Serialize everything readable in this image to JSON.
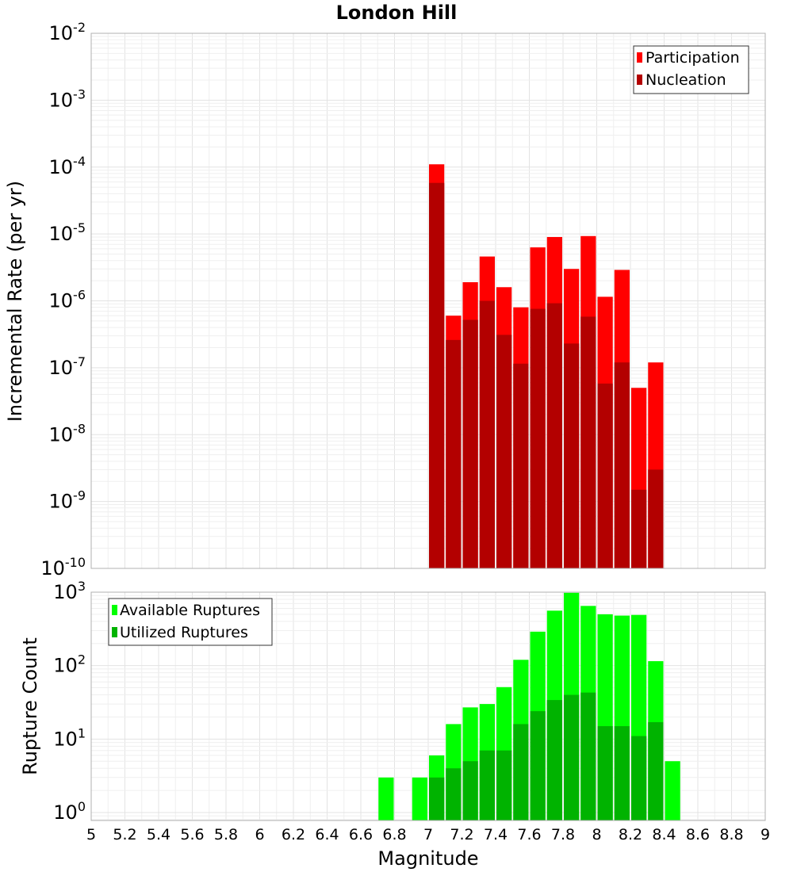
{
  "chart_data": [
    {
      "type": "bar",
      "title": "London Hill",
      "xlabel": "",
      "ylabel": "Incremental Rate (per yr)",
      "yscale": "log",
      "ylim": [
        1e-10,
        0.01
      ],
      "xlim": [
        5,
        9
      ],
      "ytick_labels": [
        {
          "base": "10",
          "exp": "-10"
        },
        {
          "base": "10",
          "exp": "-9"
        },
        {
          "base": "10",
          "exp": "-8"
        },
        {
          "base": "10",
          "exp": "-7"
        },
        {
          "base": "10",
          "exp": "-6"
        },
        {
          "base": "10",
          "exp": "-5"
        },
        {
          "base": "10",
          "exp": "-4"
        },
        {
          "base": "10",
          "exp": "-3"
        },
        {
          "base": "10",
          "exp": "-2"
        }
      ],
      "legend_position": "top-right",
      "bin_width": 0.1,
      "x": [
        7.05,
        7.15,
        7.25,
        7.35,
        7.45,
        7.55,
        7.65,
        7.75,
        7.85,
        7.95,
        8.05,
        8.15,
        8.25,
        8.35
      ],
      "series": [
        {
          "name": "Participation",
          "color": "#ff0000",
          "values": [
            0.00011,
            6e-07,
            1.9e-06,
            4.6e-06,
            1.6e-06,
            8e-07,
            6.3e-06,
            9e-06,
            3e-06,
            9.3e-06,
            1.15e-06,
            2.9e-06,
            5e-08,
            1.2e-07
          ]
        },
        {
          "name": "Nucleation",
          "color": "#b30000",
          "values": [
            5.8e-05,
            2.6e-07,
            5.2e-07,
            1e-06,
            3.1e-07,
            1.15e-07,
            7.6e-07,
            9.2e-07,
            2.3e-07,
            5.8e-07,
            5.8e-08,
            1.2e-07,
            1.5e-09,
            3e-09
          ]
        }
      ]
    },
    {
      "type": "bar",
      "title": "",
      "xlabel": "Magnitude",
      "ylabel": "Rupture Count",
      "yscale": "log",
      "ylim": [
        0.78,
        1000
      ],
      "xlim": [
        5,
        9
      ],
      "ytick_labels": [
        {
          "base": "10",
          "exp": "0"
        },
        {
          "base": "10",
          "exp": "1"
        },
        {
          "base": "10",
          "exp": "2"
        },
        {
          "base": "10",
          "exp": "3"
        }
      ],
      "xtick_labels": [
        "5",
        "5.2",
        "5.4",
        "5.6",
        "5.8",
        "6",
        "6.2",
        "6.4",
        "6.6",
        "6.8",
        "7",
        "7.2",
        "7.4",
        "7.6",
        "7.8",
        "8",
        "8.2",
        "8.4",
        "8.6",
        "8.8",
        "9"
      ],
      "legend_position": "top-left",
      "bin_width": 0.1,
      "x": [
        6.75,
        6.95,
        7.05,
        7.15,
        7.25,
        7.35,
        7.45,
        7.55,
        7.65,
        7.75,
        7.85,
        7.95,
        8.05,
        8.15,
        8.25,
        8.35,
        8.45
      ],
      "series": [
        {
          "name": "Available Ruptures",
          "color": "#00ff00",
          "values": [
            3,
            3,
            6,
            16,
            27,
            30,
            51,
            120,
            290,
            560,
            980,
            650,
            500,
            480,
            490,
            115,
            5
          ]
        },
        {
          "name": "Utilized Ruptures",
          "color": "#00b300",
          "values": [
            0,
            0,
            3,
            4,
            5,
            7,
            7,
            16,
            24,
            34,
            40,
            43,
            15,
            15,
            11,
            17,
            0
          ]
        }
      ]
    }
  ]
}
